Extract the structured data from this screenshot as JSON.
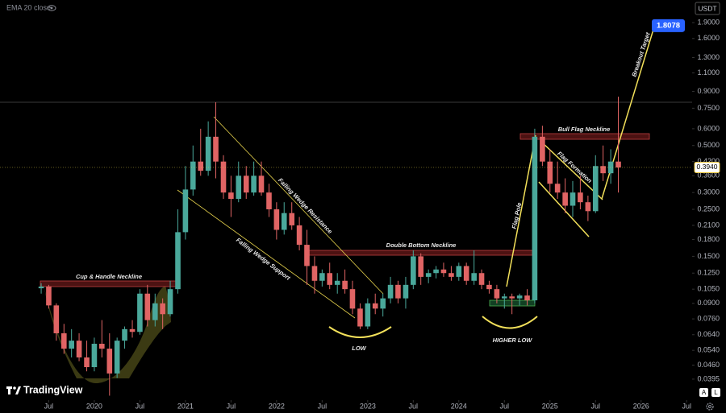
{
  "chart_data": {
    "type": "candlestick",
    "indicator": "EMA 20 close",
    "currency": "USDT",
    "brand": "TradingView",
    "scale_buttons": [
      "A",
      "L"
    ],
    "log_scale": true,
    "up_color": "#4aa89b",
    "down_color": "#e06464",
    "ylim": [
      0.032,
      2.43
    ],
    "xlim": [
      2018.965,
      2026.56
    ],
    "yticks": [
      {
        "value": 1.9,
        "label": "1.9000"
      },
      {
        "value": 1.6,
        "label": "1.6000"
      },
      {
        "value": 1.3,
        "label": "1.3000"
      },
      {
        "value": 1.1,
        "label": "1.1000"
      },
      {
        "value": 0.9,
        "label": "0.9000"
      },
      {
        "value": 0.75,
        "label": "0.7500"
      },
      {
        "value": 0.6,
        "label": "0.6000"
      },
      {
        "value": 0.5,
        "label": "0.5000"
      },
      {
        "value": 0.42,
        "label": "0.4200"
      },
      {
        "value": 0.36,
        "label": "0.3600"
      },
      {
        "value": 0.3,
        "label": "0.3000"
      },
      {
        "value": 0.25,
        "label": "0.2500"
      },
      {
        "value": 0.21,
        "label": "0.2100"
      },
      {
        "value": 0.18,
        "label": "0.1800"
      },
      {
        "value": 0.15,
        "label": "0.1500"
      },
      {
        "value": 0.125,
        "label": "0.1250"
      },
      {
        "value": 0.105,
        "label": "0.1050"
      },
      {
        "value": 0.09,
        "label": "0.0900"
      },
      {
        "value": 0.076,
        "label": "0.0760"
      },
      {
        "value": 0.064,
        "label": "0.0640"
      },
      {
        "value": 0.054,
        "label": "0.0540"
      },
      {
        "value": 0.046,
        "label": "0.0460"
      },
      {
        "value": 0.0395,
        "label": "0.0395"
      }
    ],
    "xticks": [
      {
        "value": 2019.5,
        "label": "Jul"
      },
      2020,
      {
        "value": 2020.5,
        "label": "Jul"
      },
      2021,
      {
        "value": 2021.5,
        "label": "Jul"
      },
      2022,
      {
        "value": 2022.5,
        "label": "Jul"
      },
      2023,
      {
        "value": 2023.5,
        "label": "Jul"
      },
      2024,
      {
        "value": 2024.5,
        "label": "Jul"
      },
      2025,
      {
        "value": 2025.5,
        "label": "Jul"
      },
      2026,
      {
        "value": 2026.5,
        "label": "Jul"
      }
    ],
    "last_price": {
      "value": 0.394,
      "label": "0.3940"
    },
    "target_price": {
      "value": 1.8078,
      "label": "1.8078"
    },
    "annotations": {
      "cup_handle": "Cup & Handle Neckline",
      "wedge_resistance": "Falling Wedge Resistance",
      "wedge_support": "Falling Wedge Support",
      "double_bottom": "Double Bottom Neckline",
      "low": "LOW",
      "higher_low": "HIGHER LOW",
      "bull_flag": "Bull Flag Neckline",
      "flag_pole": "Flag Pole",
      "flag_formation": "Flag Formation",
      "breakout_target": "Breakout Target"
    },
    "x": [
      2019.417,
      2019.5,
      2019.583,
      2019.667,
      2019.75,
      2019.833,
      2019.917,
      2020.0,
      2020.083,
      2020.167,
      2020.25,
      2020.333,
      2020.417,
      2020.5,
      2020.583,
      2020.667,
      2020.75,
      2020.833,
      2020.917,
      2021.0,
      2021.083,
      2021.167,
      2021.25,
      2021.333,
      2021.417,
      2021.5,
      2021.583,
      2021.667,
      2021.75,
      2021.833,
      2021.917,
      2022.0,
      2022.083,
      2022.167,
      2022.25,
      2022.333,
      2022.417,
      2022.5,
      2022.583,
      2022.667,
      2022.75,
      2022.833,
      2022.917,
      2023.0,
      2023.083,
      2023.167,
      2023.25,
      2023.333,
      2023.417,
      2023.5,
      2023.583,
      2023.667,
      2023.75,
      2023.833,
      2023.917,
      2024.0,
      2024.083,
      2024.167,
      2024.25,
      2024.333,
      2024.417,
      2024.5,
      2024.583,
      2024.667,
      2024.75,
      2024.833,
      2024.917,
      2025.0,
      2025.083,
      2025.167,
      2025.25,
      2025.333,
      2025.417,
      2025.5,
      2025.583,
      2025.667,
      2025.75
    ],
    "open": [
      0.106,
      0.108,
      0.088,
      0.065,
      0.055,
      0.06,
      0.05,
      0.045,
      0.058,
      0.055,
      0.042,
      0.06,
      0.068,
      0.066,
      0.1,
      0.075,
      0.09,
      0.08,
      0.105,
      0.195,
      0.31,
      0.42,
      0.38,
      0.55,
      0.42,
      0.3,
      0.28,
      0.36,
      0.3,
      0.36,
      0.3,
      0.25,
      0.2,
      0.24,
      0.21,
      0.17,
      0.135,
      0.115,
      0.125,
      0.11,
      0.115,
      0.105,
      0.085,
      0.07,
      0.09,
      0.085,
      0.095,
      0.11,
      0.095,
      0.11,
      0.15,
      0.12,
      0.125,
      0.13,
      0.125,
      0.12,
      0.135,
      0.115,
      0.125,
      0.11,
      0.105,
      0.095,
      0.097,
      0.095,
      0.098,
      0.093,
      0.55,
      0.42,
      0.33,
      0.3,
      0.26,
      0.3,
      0.27,
      0.245,
      0.4,
      0.37,
      0.42
    ],
    "high": [
      0.112,
      0.11,
      0.09,
      0.072,
      0.068,
      0.065,
      0.06,
      0.062,
      0.075,
      0.065,
      0.062,
      0.07,
      0.075,
      0.105,
      0.11,
      0.1,
      0.095,
      0.115,
      0.25,
      0.4,
      0.5,
      0.6,
      0.65,
      0.8,
      0.45,
      0.36,
      0.42,
      0.4,
      0.42,
      0.42,
      0.33,
      0.27,
      0.27,
      0.27,
      0.23,
      0.2,
      0.15,
      0.13,
      0.14,
      0.125,
      0.13,
      0.115,
      0.09,
      0.095,
      0.1,
      0.1,
      0.12,
      0.115,
      0.12,
      0.16,
      0.155,
      0.13,
      0.135,
      0.14,
      0.135,
      0.14,
      0.14,
      0.16,
      0.13,
      0.115,
      0.11,
      0.1,
      0.1,
      0.1,
      0.105,
      0.6,
      0.62,
      0.48,
      0.42,
      0.35,
      0.34,
      0.36,
      0.29,
      0.45,
      0.5,
      0.48,
      0.85
    ],
    "low": [
      0.1,
      0.085,
      0.06,
      0.052,
      0.05,
      0.048,
      0.043,
      0.043,
      0.05,
      0.033,
      0.04,
      0.055,
      0.062,
      0.064,
      0.07,
      0.07,
      0.068,
      0.078,
      0.1,
      0.18,
      0.29,
      0.36,
      0.36,
      0.35,
      0.28,
      0.23,
      0.27,
      0.28,
      0.29,
      0.29,
      0.23,
      0.18,
      0.19,
      0.2,
      0.16,
      0.11,
      0.1,
      0.108,
      0.105,
      0.1,
      0.1,
      0.08,
      0.068,
      0.068,
      0.08,
      0.078,
      0.09,
      0.09,
      0.085,
      0.105,
      0.11,
      0.112,
      0.118,
      0.12,
      0.115,
      0.115,
      0.11,
      0.11,
      0.105,
      0.1,
      0.09,
      0.085,
      0.08,
      0.088,
      0.088,
      0.09,
      0.4,
      0.3,
      0.28,
      0.24,
      0.23,
      0.25,
      0.22,
      0.24,
      0.34,
      0.33,
      0.3
    ],
    "close": [
      0.108,
      0.088,
      0.065,
      0.055,
      0.06,
      0.05,
      0.045,
      0.058,
      0.055,
      0.042,
      0.06,
      0.068,
      0.066,
      0.1,
      0.075,
      0.09,
      0.08,
      0.105,
      0.195,
      0.31,
      0.42,
      0.38,
      0.55,
      0.42,
      0.3,
      0.28,
      0.36,
      0.3,
      0.36,
      0.3,
      0.25,
      0.2,
      0.24,
      0.21,
      0.17,
      0.135,
      0.115,
      0.125,
      0.11,
      0.115,
      0.105,
      0.085,
      0.07,
      0.09,
      0.085,
      0.095,
      0.11,
      0.095,
      0.11,
      0.15,
      0.12,
      0.125,
      0.13,
      0.125,
      0.12,
      0.135,
      0.115,
      0.125,
      0.11,
      0.105,
      0.095,
      0.097,
      0.095,
      0.098,
      0.093,
      0.55,
      0.42,
      0.33,
      0.3,
      0.26,
      0.3,
      0.27,
      0.245,
      0.4,
      0.37,
      0.42,
      0.394
    ]
  }
}
